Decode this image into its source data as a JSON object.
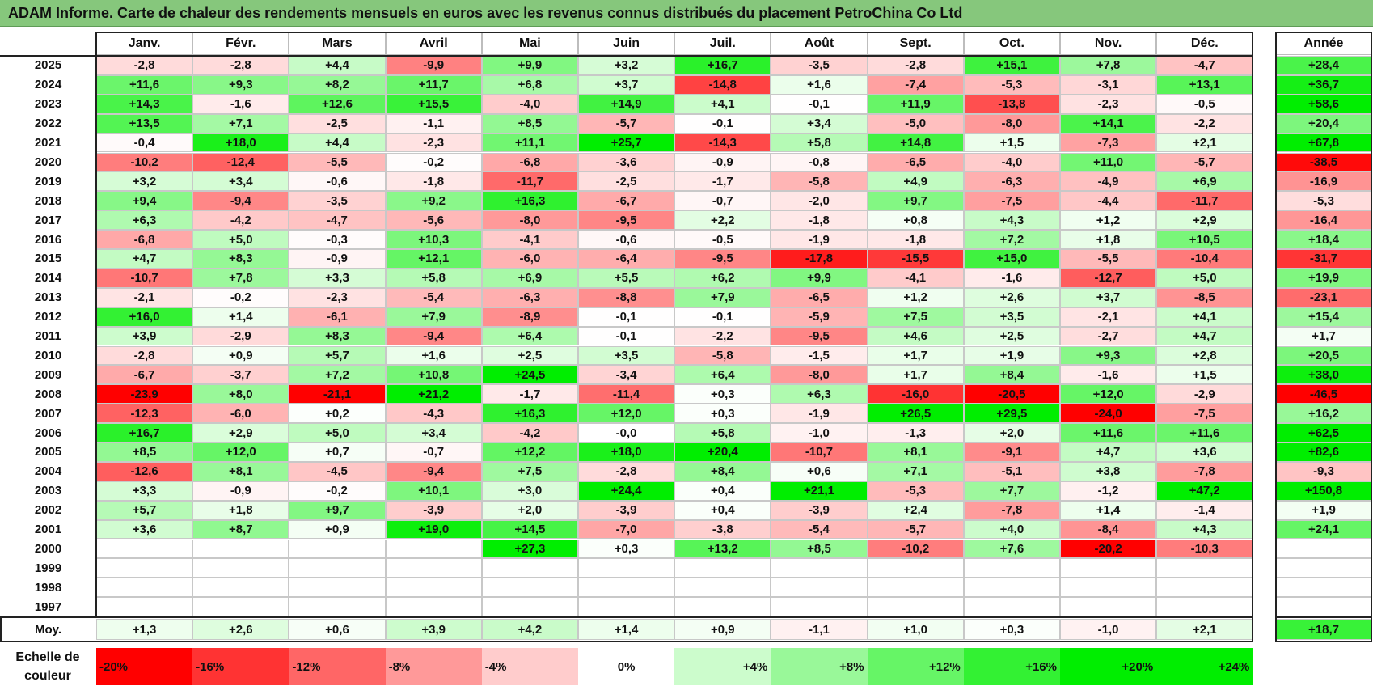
{
  "title": "ADAM Informe. Carte de chaleur des rendements mensuels en euros avec les revenus connus distribués du placement PetroChina Co Ltd",
  "chart_data": {
    "type": "heatmap",
    "columns": [
      "Janv.",
      "Févr.",
      "Mars",
      "Avril",
      "Mai",
      "Juin",
      "Juil.",
      "Août",
      "Sept.",
      "Oct.",
      "Nov.",
      "Déc."
    ],
    "year_header": "Année",
    "rows": [
      {
        "year": "2025",
        "values": [
          "-2,8",
          "-2,8",
          "+4,4",
          "-9,9",
          "+9,9",
          "+3,2",
          "+16,7",
          "-3,5",
          "-2,8",
          "+15,1",
          "+7,8",
          "-4,7"
        ],
        "annual": "+28,4"
      },
      {
        "year": "2024",
        "values": [
          "+11,6",
          "+9,3",
          "+8,2",
          "+11,7",
          "+6,8",
          "+3,7",
          "-14,8",
          "+1,6",
          "-7,4",
          "-5,3",
          "-3,1",
          "+13,1"
        ],
        "annual": "+36,7"
      },
      {
        "year": "2023",
        "values": [
          "+14,3",
          "-1,6",
          "+12,6",
          "+15,5",
          "-4,0",
          "+14,9",
          "+4,1",
          "-0,1",
          "+11,9",
          "-13,8",
          "-2,3",
          "-0,5"
        ],
        "annual": "+58,6"
      },
      {
        "year": "2022",
        "values": [
          "+13,5",
          "+7,1",
          "-2,5",
          "-1,1",
          "+8,5",
          "-5,7",
          "-0,1",
          "+3,4",
          "-5,0",
          "-8,0",
          "+14,1",
          "-2,2"
        ],
        "annual": "+20,4"
      },
      {
        "year": "2021",
        "values": [
          "-0,4",
          "+18,0",
          "+4,4",
          "-2,3",
          "+11,1",
          "+25,7",
          "-14,3",
          "+5,8",
          "+14,8",
          "+1,5",
          "-7,3",
          "+2,1"
        ],
        "annual": "+67,8"
      },
      {
        "year": "2020",
        "values": [
          "-10,2",
          "-12,4",
          "-5,5",
          "-0,2",
          "-6,8",
          "-3,6",
          "-0,9",
          "-0,8",
          "-6,5",
          "-4,0",
          "+11,0",
          "-5,7"
        ],
        "annual": "-38,5"
      },
      {
        "year": "2019",
        "values": [
          "+3,2",
          "+3,4",
          "-0,6",
          "-1,8",
          "-11,7",
          "-2,5",
          "-1,7",
          "-5,8",
          "+4,9",
          "-6,3",
          "-4,9",
          "+6,9"
        ],
        "annual": "-16,9"
      },
      {
        "year": "2018",
        "values": [
          "+9,4",
          "-9,4",
          "-3,5",
          "+9,2",
          "+16,3",
          "-6,7",
          "-0,7",
          "-2,0",
          "+9,7",
          "-7,5",
          "-4,4",
          "-11,7"
        ],
        "annual": "-5,3"
      },
      {
        "year": "2017",
        "values": [
          "+6,3",
          "-4,2",
          "-4,7",
          "-5,6",
          "-8,0",
          "-9,5",
          "+2,2",
          "-1,8",
          "+0,8",
          "+4,3",
          "+1,2",
          "+2,9"
        ],
        "annual": "-16,4"
      },
      {
        "year": "2016",
        "values": [
          "-6,8",
          "+5,0",
          "-0,3",
          "+10,3",
          "-4,1",
          "-0,6",
          "-0,5",
          "-1,9",
          "-1,8",
          "+7,2",
          "+1,8",
          "+10,5"
        ],
        "annual": "+18,4"
      },
      {
        "year": "2015",
        "values": [
          "+4,7",
          "+8,3",
          "-0,9",
          "+12,1",
          "-6,0",
          "-6,4",
          "-9,5",
          "-17,8",
          "-15,5",
          "+15,0",
          "-5,5",
          "-10,4"
        ],
        "annual": "-31,7"
      },
      {
        "year": "2014",
        "values": [
          "-10,7",
          "+7,8",
          "+3,3",
          "+5,8",
          "+6,9",
          "+5,5",
          "+6,2",
          "+9,9",
          "-4,1",
          "-1,6",
          "-12,7",
          "+5,0"
        ],
        "annual": "+19,9"
      },
      {
        "year": "2013",
        "values": [
          "-2,1",
          "-0,2",
          "-2,3",
          "-5,4",
          "-6,3",
          "-8,8",
          "+7,9",
          "-6,5",
          "+1,2",
          "+2,6",
          "+3,7",
          "-8,5"
        ],
        "annual": "-23,1"
      },
      {
        "year": "2012",
        "values": [
          "+16,0",
          "+1,4",
          "-6,1",
          "+7,9",
          "-8,9",
          "-0,1",
          "-0,1",
          "-5,9",
          "+7,5",
          "+3,5",
          "-2,1",
          "+4,1"
        ],
        "annual": "+15,4"
      },
      {
        "year": "2011",
        "values": [
          "+3,9",
          "-2,9",
          "+8,3",
          "-9,4",
          "+6,4",
          "-0,1",
          "-2,2",
          "-9,5",
          "+4,6",
          "+2,5",
          "-2,7",
          "+4,7"
        ],
        "annual": "+1,7"
      },
      {
        "year": "2010",
        "values": [
          "-2,8",
          "+0,9",
          "+5,7",
          "+1,6",
          "+2,5",
          "+3,5",
          "-5,8",
          "-1,5",
          "+1,7",
          "+1,9",
          "+9,3",
          "+2,8"
        ],
        "annual": "+20,5"
      },
      {
        "year": "2009",
        "values": [
          "-6,7",
          "-3,7",
          "+7,2",
          "+10,8",
          "+24,5",
          "-3,4",
          "+6,4",
          "-8,0",
          "+1,7",
          "+8,4",
          "-1,6",
          "+1,5"
        ],
        "annual": "+38,0"
      },
      {
        "year": "2008",
        "values": [
          "-23,9",
          "+8,0",
          "-21,1",
          "+21,2",
          "-1,7",
          "-11,4",
          "+0,3",
          "+6,3",
          "-16,0",
          "-20,5",
          "+12,0",
          "-2,9"
        ],
        "annual": "-46,5"
      },
      {
        "year": "2007",
        "values": [
          "-12,3",
          "-6,0",
          "+0,2",
          "-4,3",
          "+16,3",
          "+12,0",
          "+0,3",
          "-1,9",
          "+26,5",
          "+29,5",
          "-24,0",
          "-7,5"
        ],
        "annual": "+16,2"
      },
      {
        "year": "2006",
        "values": [
          "+16,7",
          "+2,9",
          "+5,0",
          "+3,4",
          "-4,2",
          "-0,0",
          "+5,8",
          "-1,0",
          "-1,3",
          "+2,0",
          "+11,6",
          "+11,6"
        ],
        "annual": "+62,5"
      },
      {
        "year": "2005",
        "values": [
          "+8,5",
          "+12,0",
          "+0,7",
          "-0,7",
          "+12,2",
          "+18,0",
          "+20,4",
          "-10,7",
          "+8,1",
          "-9,1",
          "+4,7",
          "+3,6"
        ],
        "annual": "+82,6"
      },
      {
        "year": "2004",
        "values": [
          "-12,6",
          "+8,1",
          "-4,5",
          "-9,4",
          "+7,5",
          "-2,8",
          "+8,4",
          "+0,6",
          "+7,1",
          "-5,1",
          "+3,8",
          "-7,8"
        ],
        "annual": "-9,3"
      },
      {
        "year": "2003",
        "values": [
          "+3,3",
          "-0,9",
          "-0,2",
          "+10,1",
          "+3,0",
          "+24,4",
          "+0,4",
          "+21,1",
          "-5,3",
          "+7,7",
          "-1,2",
          "+47,2"
        ],
        "annual": "+150,8"
      },
      {
        "year": "2002",
        "values": [
          "+5,7",
          "+1,8",
          "+9,7",
          "-3,9",
          "+2,0",
          "-3,9",
          "+0,4",
          "-3,9",
          "+2,4",
          "-7,8",
          "+1,4",
          "-1,4"
        ],
        "annual": "+1,9"
      },
      {
        "year": "2001",
        "values": [
          "+3,6",
          "+8,7",
          "+0,9",
          "+19,0",
          "+14,5",
          "-7,0",
          "-3,8",
          "-5,4",
          "-5,7",
          "+4,0",
          "-8,4",
          "+4,3"
        ],
        "annual": "+24,1"
      },
      {
        "year": "2000",
        "values": [
          "",
          "",
          "",
          "",
          "+27,3",
          "+0,3",
          "+13,2",
          "+8,5",
          "-10,2",
          "+7,6",
          "-20,2",
          "-10,3"
        ],
        "annual": ""
      },
      {
        "year": "1999",
        "values": [
          "",
          "",
          "",
          "",
          "",
          "",
          "",
          "",
          "",
          "",
          "",
          ""
        ],
        "annual": ""
      },
      {
        "year": "1998",
        "values": [
          "",
          "",
          "",
          "",
          "",
          "",
          "",
          "",
          "",
          "",
          "",
          ""
        ],
        "annual": ""
      },
      {
        "year": "1997",
        "values": [
          "",
          "",
          "",
          "",
          "",
          "",
          "",
          "",
          "",
          "",
          "",
          ""
        ],
        "annual": ""
      }
    ],
    "average": {
      "label": "Moy.",
      "values": [
        "+1,3",
        "+2,6",
        "+0,6",
        "+3,9",
        "+4,2",
        "+1,4",
        "+0,9",
        "-1,1",
        "+1,0",
        "+0,3",
        "-1,0",
        "+2,1"
      ],
      "annual": "+18,7"
    },
    "scale": {
      "label": "Echelle de couleur",
      "steps": [
        "-20%",
        "-16%",
        "-12%",
        "-8%",
        "-4%",
        "0%",
        "+4%",
        "+8%",
        "+12%",
        "+16%",
        "+20%",
        "+24%"
      ],
      "step_values": [
        -20,
        -16,
        -12,
        -8,
        -4,
        0,
        4,
        8,
        12,
        16,
        20,
        24
      ]
    },
    "colors": {
      "negative_max": "#ff0000",
      "neutral": "#ffffff",
      "positive_max": "#00ee00",
      "title_bar": "#86c77c"
    }
  }
}
